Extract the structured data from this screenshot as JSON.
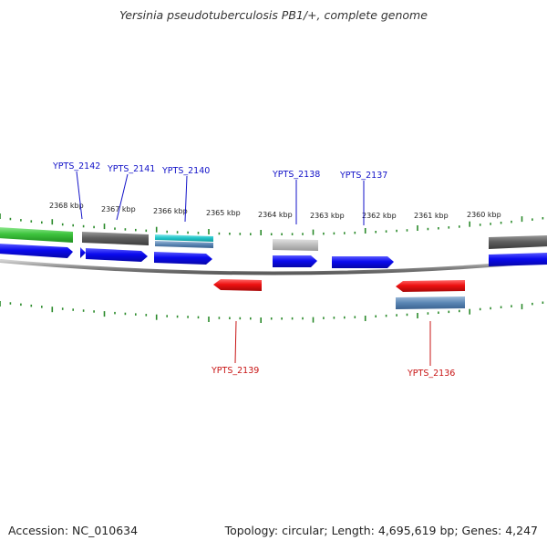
{
  "title": "Yersinia pseudotuberculosis PB1/+, complete genome",
  "footer": {
    "accession": "Accession: NC_010634",
    "summary": "Topology: circular; Length: 4,695,619 bp; Genes: 4,247"
  },
  "colors": {
    "forward_cds": "#0a0aee",
    "reverse_cds": "#ee1111",
    "forward_label": "#1212c8",
    "reverse_label": "#c81414",
    "tick": "#2a8a2a",
    "backbone": "#8a8a8a",
    "green_feature": "#3ec43e",
    "gray_feature": "#606060",
    "light_gray_feature": "#bcbcbc",
    "cyan_feature": "#20c4c8",
    "steel_feature": "#5a86b4"
  },
  "scale": {
    "unit": "kbp",
    "ticks": [
      {
        "kbp": 2368,
        "label": "2368 kbp"
      },
      {
        "kbp": 2367,
        "label": "2367 kbp"
      },
      {
        "kbp": 2366,
        "label": "2366 kbp"
      },
      {
        "kbp": 2365,
        "label": "2365 kbp"
      },
      {
        "kbp": 2364,
        "label": "2364 kbp"
      },
      {
        "kbp": 2363,
        "label": "2363 kbp"
      },
      {
        "kbp": 2362,
        "label": "2362 kbp"
      },
      {
        "kbp": 2361,
        "label": "2361 kbp"
      },
      {
        "kbp": 2360,
        "label": "2360 kbp"
      }
    ]
  },
  "genes": [
    {
      "name": "YPTS_2142",
      "strand": "forward"
    },
    {
      "name": "YPTS_2141",
      "strand": "forward"
    },
    {
      "name": "YPTS_2140",
      "strand": "forward"
    },
    {
      "name": "YPTS_2138",
      "strand": "forward"
    },
    {
      "name": "YPTS_2137",
      "strand": "forward"
    },
    {
      "name": "YPTS_2139",
      "strand": "reverse"
    },
    {
      "name": "YPTS_2136",
      "strand": "reverse"
    }
  ]
}
